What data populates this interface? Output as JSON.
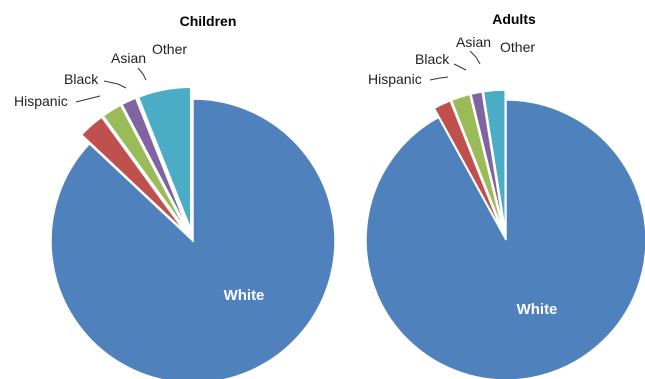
{
  "chart_data": [
    {
      "type": "pie",
      "title": "Children",
      "categories": [
        "White",
        "Hispanic",
        "Black",
        "Asian",
        "Other"
      ],
      "values": [
        87.0,
        3.0,
        2.3,
        1.7,
        6.0
      ],
      "colors": [
        "#4F81BD",
        "#C0504D",
        "#9BBB59",
        "#8064A2",
        "#4BACC6"
      ],
      "exploded": [
        "Hispanic",
        "Black",
        "Asian",
        "Other"
      ],
      "unit": "%"
    },
    {
      "type": "pie",
      "title": "Adults",
      "categories": [
        "White",
        "Hispanic",
        "Black",
        "Asian",
        "Other"
      ],
      "values": [
        92.0,
        2.0,
        2.2,
        1.3,
        2.5
      ],
      "colors": [
        "#4F81BD",
        "#C0504D",
        "#9BBB59",
        "#8064A2",
        "#4BACC6"
      ],
      "exploded": [
        "Hispanic",
        "Black",
        "Asian",
        "Other"
      ],
      "unit": "%"
    }
  ]
}
